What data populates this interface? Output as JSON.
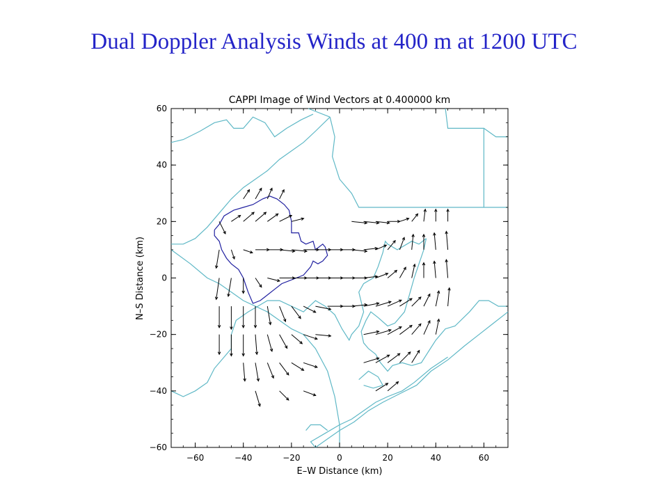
{
  "slide": {
    "title": "Dual Doppler Analysis  Winds at 400 m at 1200 UTC"
  },
  "colors": {
    "title": "#2424c8",
    "coastline": "#5fb8c6",
    "echo_outline": "#2020a0",
    "vectors": "#000000"
  },
  "chart_data": {
    "type": "vector-field",
    "title": "CAPPI Image of Wind Vectors at  0.400000 km",
    "xlabel": "E–W Distance (km)",
    "ylabel": "N–S Distance (km)",
    "xlim": [
      -70,
      70
    ],
    "ylim": [
      -60,
      60
    ],
    "xticks": [
      -60,
      -40,
      -20,
      0,
      20,
      40,
      60
    ],
    "yticks": [
      -60,
      -40,
      -20,
      0,
      20,
      40,
      60
    ],
    "xtick_labels": [
      "−60",
      "−40",
      "−20",
      "0",
      "20",
      "40",
      "60"
    ],
    "ytick_labels": [
      "−60",
      "−40",
      "−20",
      "0",
      "20",
      "40",
      "60"
    ],
    "grid": false,
    "coastlines": [
      [
        [
          -70,
          48
        ],
        [
          -65,
          49
        ],
        [
          -58,
          52
        ],
        [
          -52,
          55
        ],
        [
          -47,
          56
        ],
        [
          -44,
          53
        ],
        [
          -40,
          53
        ],
        [
          -36,
          57
        ],
        [
          -31,
          55
        ],
        [
          -27,
          50
        ],
        [
          -22,
          53
        ],
        [
          -16,
          56
        ],
        [
          -11,
          58
        ]
      ],
      [
        [
          -4,
          57
        ],
        [
          -2,
          50
        ],
        [
          -3,
          43
        ],
        [
          0,
          35
        ],
        [
          5,
          30
        ],
        [
          8,
          25
        ],
        [
          45,
          25
        ],
        [
          55,
          25
        ],
        [
          60,
          25
        ],
        [
          62,
          25
        ],
        [
          69,
          25
        ],
        [
          70,
          25
        ]
      ],
      [
        [
          -13,
          60
        ],
        [
          -4,
          57
        ]
      ],
      [
        [
          -4,
          57
        ],
        [
          -10,
          52
        ],
        [
          -15,
          48
        ],
        [
          -20,
          45
        ],
        [
          -25,
          42
        ],
        [
          -30,
          38
        ],
        [
          -35,
          35
        ],
        [
          -40,
          32
        ],
        [
          -45,
          28
        ],
        [
          -50,
          23
        ],
        [
          -55,
          18
        ],
        [
          -60,
          14
        ],
        [
          -65,
          12
        ],
        [
          -70,
          12
        ]
      ],
      [
        [
          44,
          60
        ],
        [
          45,
          53
        ],
        [
          60,
          53
        ],
        [
          60,
          25
        ]
      ],
      [
        [
          60,
          53
        ],
        [
          65,
          50
        ],
        [
          70,
          50
        ]
      ],
      [
        [
          -70,
          10
        ],
        [
          -62,
          5
        ],
        [
          -55,
          0
        ],
        [
          -50,
          -2
        ],
        [
          -45,
          -5
        ],
        [
          -40,
          -8
        ],
        [
          -35,
          -10
        ],
        [
          -30,
          -12
        ],
        [
          -25,
          -15
        ],
        [
          -20,
          -18
        ],
        [
          -15,
          -20
        ],
        [
          -10,
          -25
        ],
        [
          -5,
          -33
        ],
        [
          -2,
          -42
        ],
        [
          0,
          -52
        ],
        [
          0,
          -60
        ]
      ],
      [
        [
          -70,
          -40
        ],
        [
          -65,
          -42
        ],
        [
          -60,
          -40
        ],
        [
          -55,
          -37
        ],
        [
          -52,
          -32
        ],
        [
          -48,
          -28
        ],
        [
          -45,
          -25
        ],
        [
          -45,
          -20
        ],
        [
          -43,
          -15
        ],
        [
          -38,
          -12
        ],
        [
          -34,
          -10
        ],
        [
          -30,
          -8
        ],
        [
          -25,
          -8
        ],
        [
          -20,
          -10
        ]
      ],
      [
        [
          -20,
          -10
        ],
        [
          -15,
          -12
        ],
        [
          -10,
          -8
        ],
        [
          -6,
          -10
        ],
        [
          -2,
          -13
        ],
        [
          1,
          -18
        ],
        [
          4,
          -22
        ],
        [
          5,
          -20
        ],
        [
          8,
          -17
        ],
        [
          10,
          -12
        ],
        [
          8,
          -5
        ],
        [
          10,
          -2
        ],
        [
          14,
          0
        ],
        [
          16,
          4
        ],
        [
          18,
          9
        ],
        [
          19,
          13
        ],
        [
          20,
          12
        ],
        [
          24,
          10
        ],
        [
          28,
          12
        ],
        [
          30,
          13
        ],
        [
          33,
          12
        ],
        [
          36,
          14
        ]
      ],
      [
        [
          36,
          14
        ],
        [
          35,
          10
        ],
        [
          33,
          5
        ],
        [
          31,
          0
        ],
        [
          29,
          -6
        ],
        [
          27,
          -12
        ],
        [
          23,
          -16
        ],
        [
          20,
          -17
        ],
        [
          16,
          -14
        ],
        [
          13,
          -12
        ],
        [
          11,
          -15
        ],
        [
          9,
          -19
        ],
        [
          10,
          -23
        ],
        [
          12,
          -25
        ],
        [
          15,
          -27
        ],
        [
          17,
          -30
        ],
        [
          20,
          -33
        ],
        [
          22,
          -31
        ],
        [
          26,
          -30
        ],
        [
          30,
          -31
        ]
      ],
      [
        [
          30,
          -31
        ],
        [
          34,
          -30
        ],
        [
          37,
          -26
        ],
        [
          40,
          -22
        ],
        [
          44,
          -18
        ],
        [
          48,
          -17
        ],
        [
          54,
          -12
        ],
        [
          58,
          -8
        ],
        [
          62,
          -8
        ],
        [
          66,
          -10
        ],
        [
          70,
          -10
        ]
      ],
      [
        [
          70,
          -12
        ],
        [
          64,
          -16
        ],
        [
          58,
          -20
        ],
        [
          52,
          -24
        ],
        [
          45,
          -29
        ],
        [
          38,
          -33
        ],
        [
          32,
          -38
        ],
        [
          25,
          -41
        ],
        [
          18,
          -44
        ],
        [
          12,
          -47
        ],
        [
          6,
          -51
        ],
        [
          0,
          -54
        ],
        [
          -5,
          -57
        ],
        [
          -10,
          -60
        ]
      ],
      [
        [
          -10,
          -60
        ],
        [
          -12,
          -58
        ],
        [
          -6,
          -55
        ],
        [
          0,
          -52
        ],
        [
          5,
          -50
        ],
        [
          10,
          -47
        ],
        [
          15,
          -44
        ],
        [
          20,
          -42
        ],
        [
          26,
          -40
        ],
        [
          31,
          -37
        ],
        [
          38,
          -32
        ],
        [
          45,
          -28
        ]
      ],
      [
        [
          -14,
          -54
        ],
        [
          -12,
          -52
        ],
        [
          -8,
          -52
        ],
        [
          -5,
          -54
        ]
      ],
      [
        [
          8,
          -36
        ],
        [
          12,
          -33
        ],
        [
          16,
          -35
        ],
        [
          18,
          -38
        ],
        [
          14,
          -39
        ],
        [
          10,
          -38
        ]
      ]
    ],
    "echo_outline": [
      [
        -52,
        17
      ],
      [
        -50,
        19
      ],
      [
        -48,
        22
      ],
      [
        -44,
        24
      ],
      [
        -40,
        25
      ],
      [
        -36,
        26
      ],
      [
        -32,
        28
      ],
      [
        -29,
        29
      ],
      [
        -26,
        28
      ],
      [
        -23,
        26
      ],
      [
        -21,
        24
      ],
      [
        -20,
        20
      ],
      [
        -20,
        16
      ],
      [
        -17,
        16
      ],
      [
        -16,
        13
      ],
      [
        -14,
        12
      ],
      [
        -11,
        13
      ],
      [
        -10,
        10
      ],
      [
        -7,
        12
      ],
      [
        -6,
        11
      ],
      [
        -5,
        8
      ],
      [
        -7,
        6
      ],
      [
        -9,
        5
      ],
      [
        -11,
        6
      ],
      [
        -12,
        4
      ],
      [
        -14,
        2
      ],
      [
        -15,
        1
      ],
      [
        -18,
        0
      ],
      [
        -21,
        -1
      ],
      [
        -24,
        -2
      ],
      [
        -27,
        -4
      ],
      [
        -30,
        -6
      ],
      [
        -33,
        -8
      ],
      [
        -36,
        -9
      ],
      [
        -38,
        -5
      ],
      [
        -40,
        0
      ],
      [
        -42,
        3
      ],
      [
        -45,
        5
      ],
      [
        -47,
        7
      ],
      [
        -49,
        10
      ],
      [
        -50,
        13
      ],
      [
        -52,
        15
      ],
      [
        -52,
        17
      ]
    ],
    "vectors": [
      [
        -50,
        -10,
        0,
        -14
      ],
      [
        -45,
        -10,
        0,
        -15
      ],
      [
        -40,
        -10,
        0,
        -14
      ],
      [
        -35,
        -10,
        0,
        -14
      ],
      [
        -30,
        -10,
        2,
        -12
      ],
      [
        -25,
        -10,
        4,
        -10
      ],
      [
        -20,
        -10,
        6,
        -8
      ],
      [
        -15,
        -10,
        8,
        -4
      ],
      [
        -10,
        -10,
        10,
        -2
      ],
      [
        -5,
        -10,
        10,
        0
      ],
      [
        0,
        -10,
        10,
        0
      ],
      [
        5,
        -10,
        10,
        1
      ],
      [
        10,
        -10,
        10,
        2
      ],
      [
        15,
        -10,
        10,
        3
      ],
      [
        20,
        -10,
        9,
        4
      ],
      [
        25,
        -10,
        8,
        5
      ],
      [
        30,
        -10,
        6,
        6
      ],
      [
        35,
        -10,
        4,
        8
      ],
      [
        40,
        -10,
        2,
        10
      ],
      [
        45,
        -10,
        1,
        12
      ],
      [
        -50,
        -20,
        0,
        -13
      ],
      [
        -45,
        -20,
        0,
        -14
      ],
      [
        -40,
        -20,
        0,
        -14
      ],
      [
        -35,
        -20,
        1,
        -13
      ],
      [
        -30,
        -20,
        3,
        -11
      ],
      [
        -25,
        -20,
        5,
        -9
      ],
      [
        -20,
        -20,
        7,
        -6
      ],
      [
        -15,
        -20,
        9,
        -3
      ],
      [
        -10,
        -20,
        10,
        -1
      ],
      [
        10,
        -20,
        10,
        2
      ],
      [
        15,
        -20,
        10,
        3
      ],
      [
        20,
        -20,
        9,
        5
      ],
      [
        25,
        -20,
        8,
        6
      ],
      [
        30,
        -20,
        6,
        7
      ],
      [
        35,
        -20,
        4,
        9
      ],
      [
        40,
        -20,
        2,
        10
      ],
      [
        -40,
        -30,
        1,
        -12
      ],
      [
        -35,
        -30,
        2,
        -12
      ],
      [
        -30,
        -30,
        4,
        -10
      ],
      [
        -25,
        -30,
        6,
        -8
      ],
      [
        -20,
        -30,
        8,
        -5
      ],
      [
        -15,
        -30,
        9,
        -3
      ],
      [
        10,
        -30,
        10,
        3
      ],
      [
        15,
        -30,
        9,
        5
      ],
      [
        20,
        -30,
        8,
        6
      ],
      [
        25,
        -30,
        7,
        7
      ],
      [
        30,
        -30,
        5,
        8
      ],
      [
        -35,
        -40,
        3,
        -10
      ],
      [
        -25,
        -40,
        6,
        -6
      ],
      [
        -15,
        -40,
        8,
        -3
      ],
      [
        15,
        -40,
        8,
        5
      ],
      [
        20,
        -40,
        7,
        6
      ],
      [
        -50,
        0,
        -2,
        -14
      ],
      [
        -45,
        0,
        -2,
        -12
      ],
      [
        -40,
        0,
        0,
        -10
      ],
      [
        -35,
        0,
        4,
        -6
      ],
      [
        -30,
        0,
        8,
        -2
      ],
      [
        -25,
        0,
        10,
        0
      ],
      [
        -20,
        0,
        10,
        0
      ],
      [
        -15,
        0,
        10,
        0
      ],
      [
        -10,
        0,
        10,
        0
      ],
      [
        -5,
        0,
        10,
        0
      ],
      [
        0,
        0,
        10,
        0
      ],
      [
        5,
        0,
        10,
        0
      ],
      [
        10,
        0,
        9,
        1
      ],
      [
        15,
        0,
        8,
        3
      ],
      [
        20,
        0,
        6,
        5
      ],
      [
        25,
        0,
        4,
        7
      ],
      [
        30,
        0,
        2,
        9
      ],
      [
        35,
        0,
        0,
        10
      ],
      [
        40,
        0,
        -1,
        11
      ],
      [
        45,
        0,
        -1,
        12
      ],
      [
        -50,
        10,
        -2,
        -12
      ],
      [
        -45,
        10,
        2,
        -6
      ],
      [
        -40,
        10,
        6,
        -2
      ],
      [
        -35,
        10,
        9,
        0
      ],
      [
        -30,
        10,
        10,
        0
      ],
      [
        -25,
        10,
        10,
        -1
      ],
      [
        -20,
        10,
        10,
        -1
      ],
      [
        -15,
        10,
        10,
        0
      ],
      [
        -10,
        10,
        10,
        0
      ],
      [
        -5,
        10,
        10,
        0
      ],
      [
        0,
        10,
        10,
        0
      ],
      [
        5,
        10,
        10,
        -1
      ],
      [
        10,
        10,
        9,
        1
      ],
      [
        15,
        10,
        7,
        3
      ],
      [
        20,
        10,
        5,
        6
      ],
      [
        25,
        10,
        3,
        8
      ],
      [
        30,
        10,
        1,
        10
      ],
      [
        35,
        10,
        0,
        10
      ],
      [
        40,
        10,
        -1,
        11
      ],
      [
        45,
        10,
        -1,
        12
      ],
      [
        -50,
        20,
        4,
        -8
      ],
      [
        -45,
        20,
        6,
        4
      ],
      [
        -40,
        20,
        7,
        6
      ],
      [
        -35,
        20,
        7,
        6
      ],
      [
        -30,
        20,
        7,
        5
      ],
      [
        -25,
        20,
        8,
        4
      ],
      [
        -20,
        20,
        8,
        2
      ],
      [
        5,
        20,
        10,
        -1
      ],
      [
        10,
        20,
        10,
        -1
      ],
      [
        15,
        20,
        9,
        -1
      ],
      [
        20,
        20,
        8,
        0
      ],
      [
        25,
        20,
        6,
        2
      ],
      [
        30,
        20,
        4,
        5
      ],
      [
        35,
        20,
        1,
        8
      ],
      [
        40,
        20,
        0,
        8
      ],
      [
        45,
        20,
        0,
        8
      ],
      [
        -40,
        28,
        4,
        6
      ],
      [
        -35,
        28,
        4,
        7
      ],
      [
        -30,
        28,
        3,
        7
      ],
      [
        -25,
        28,
        3,
        6
      ]
    ]
  }
}
